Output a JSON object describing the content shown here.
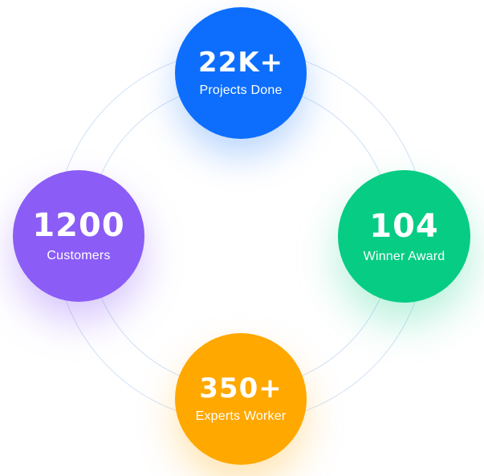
{
  "stats": [
    {
      "value": "22K+",
      "label": "Projects Done",
      "color": "#0d6efd"
    },
    {
      "value": "1200",
      "label": "Customers",
      "color": "#8b5cf6"
    },
    {
      "value": "104",
      "label": "Winner Award",
      "color": "#06cc84"
    },
    {
      "value": "350+",
      "label": "Experts Worker",
      "color": "#ffa800"
    }
  ],
  "ring_color": "#cfe0f5"
}
